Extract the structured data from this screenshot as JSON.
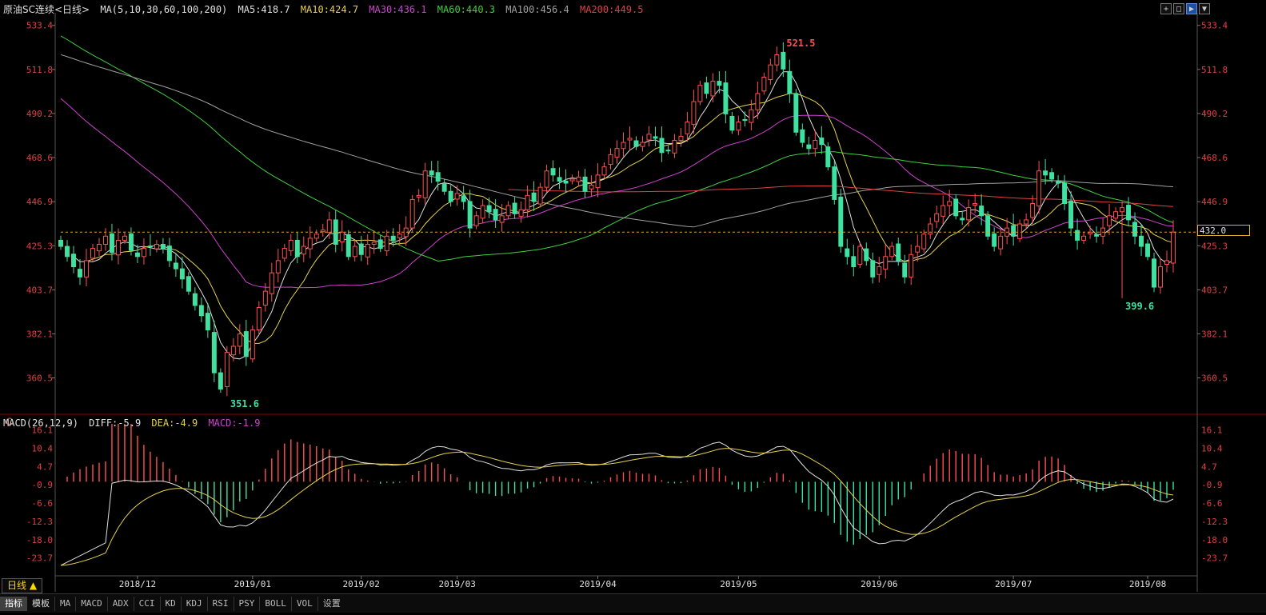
{
  "header": {
    "instrument_label": "原油SC连续<日线>",
    "ma_label": "MA(5,10,30,60,100,200)",
    "ma_values": [
      {
        "text": "MA5:418.7",
        "color": "#e0e0e0"
      },
      {
        "text": "MA10:424.7",
        "color": "#e6d24a"
      },
      {
        "text": "MA30:436.1",
        "color": "#d040d0"
      },
      {
        "text": "MA60:440.3",
        "color": "#40d040"
      },
      {
        "text": "MA100:456.4",
        "color": "#a0a0a0"
      },
      {
        "text": "MA200:449.5",
        "color": "#e04040"
      }
    ],
    "window_buttons": [
      "+",
      "□",
      "▶",
      "▼"
    ]
  },
  "macd_header": {
    "label": "MACD(26,12,9)",
    "diff": {
      "text": "DIFF:-5.9",
      "color": "#e0e0e0"
    },
    "dea": {
      "text": "DEA:-4.9",
      "color": "#e6d24a"
    },
    "macd": {
      "text": "MACD:-1.9",
      "color": "#d040d0"
    }
  },
  "current_price_tag": "432.0",
  "period_button": "日线 ▲",
  "bottom_bar": {
    "tabs": [
      "指标",
      "模板"
    ],
    "items": [
      "MA",
      "MACD",
      "ADX",
      "CCI",
      "KD",
      "KDJ",
      "RSI",
      "PSY",
      "BOLL",
      "VOL",
      "设置"
    ]
  },
  "colors": {
    "up": "#ff5050",
    "down": "#40e0a0",
    "grid": "#333333",
    "axis_text": "#e04040",
    "date_text": "#e0e0e0"
  },
  "chart_data": [
    {
      "type": "candlestick",
      "title": "",
      "ylim": [
        345,
        538
      ],
      "y_ticks": [
        "533.4",
        "511.8",
        "490.2",
        "468.6",
        "446.9",
        "425.3",
        "403.7",
        "382.1",
        "360.5"
      ],
      "x_ticks": [
        "2018/12",
        "2019/01",
        "2019/02",
        "2019/03",
        "2019/04",
        "2019/05",
        "2019/06",
        "2019/07",
        "2019/08"
      ],
      "current_price": 432.0,
      "annotations": [
        {
          "text": "521.5",
          "value": 521.5,
          "day": 113
        },
        {
          "text": "351.6",
          "value": 351.6,
          "day": 26
        },
        {
          "text": "399.6",
          "value": 399.6,
          "day": 166
        }
      ],
      "close": [
        425,
        420,
        415,
        410,
        418,
        424,
        426,
        430,
        422,
        428,
        430,
        423,
        420,
        424,
        425,
        426,
        424,
        418,
        414,
        409,
        403,
        396,
        391,
        384,
        363,
        355,
        373,
        376,
        382,
        371,
        384,
        395,
        403,
        412,
        418,
        424,
        428,
        420,
        425,
        429,
        431,
        433,
        438,
        426,
        432,
        420,
        425,
        421,
        426,
        427,
        424,
        430,
        428,
        431,
        434,
        448,
        450,
        462,
        460,
        457,
        452,
        447,
        451,
        447,
        434,
        440,
        445,
        442,
        438,
        440,
        445,
        441,
        443,
        450,
        447,
        454,
        462,
        460,
        457,
        456,
        458,
        459,
        452,
        455,
        460,
        464,
        470,
        473,
        476,
        478,
        474,
        476,
        480,
        478,
        471,
        472,
        477,
        479,
        486,
        496,
        504,
        500,
        506,
        504,
        490,
        482,
        486,
        487,
        492,
        500,
        508,
        514,
        519,
        512,
        500,
        481,
        476,
        473,
        477,
        475,
        464,
        448,
        425,
        420,
        415,
        425,
        418,
        410,
        415,
        420,
        425,
        418,
        410,
        421,
        425,
        431,
        436,
        441,
        445,
        447,
        440,
        438,
        444,
        446,
        440,
        430,
        425,
        430,
        434,
        430,
        436,
        438,
        446,
        462,
        460,
        458,
        456,
        446,
        434,
        428,
        430,
        432,
        430,
        434,
        440,
        442,
        444,
        438,
        430,
        425,
        420,
        405,
        415,
        418,
        432
      ]
    },
    {
      "type": "macd",
      "ylim": [
        -28,
        18
      ],
      "y_ticks": [
        "16.1",
        "10.4",
        "4.7",
        "-0.9",
        "-6.6",
        "-12.3",
        "-18.0",
        "-23.7"
      ],
      "x_ticks": [
        "2018/12",
        "2019/01",
        "2019/02",
        "2019/03",
        "2019/04",
        "2019/05",
        "2019/06",
        "2019/07",
        "2019/08"
      ]
    }
  ]
}
